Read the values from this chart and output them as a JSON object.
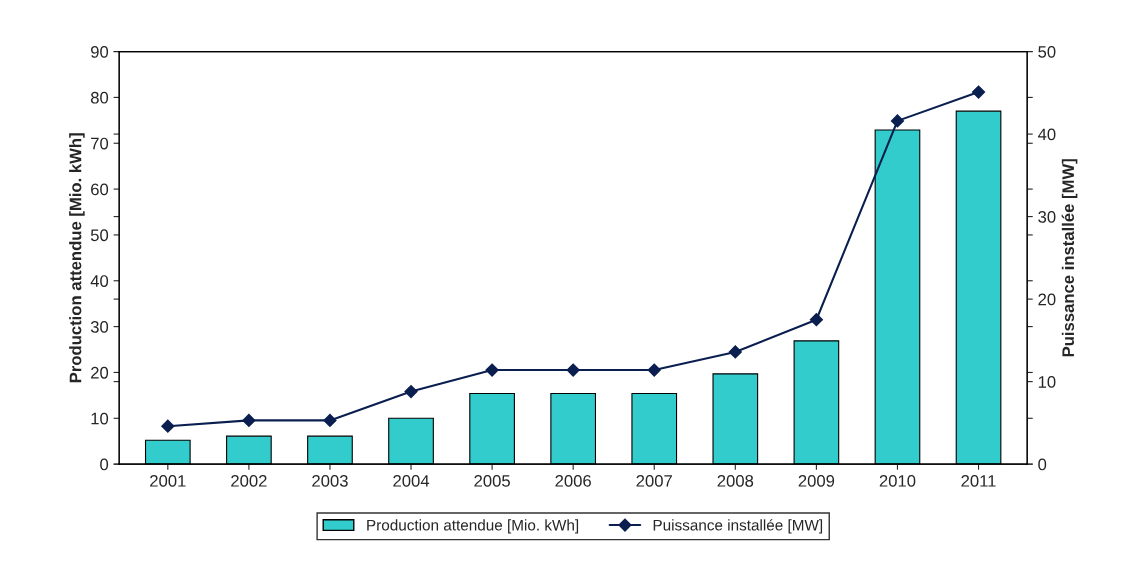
{
  "chart_data": {
    "type": "bar",
    "categories": [
      "2001",
      "2002",
      "2003",
      "2004",
      "2005",
      "2006",
      "2007",
      "2008",
      "2009",
      "2010",
      "2011"
    ],
    "ylabel": "Production attendue [Mio. kWh]",
    "y2label": "Puissance installée [MW]",
    "ylim": [
      0,
      90
    ],
    "yticks": [
      0,
      10,
      20,
      30,
      40,
      50,
      60,
      70,
      80,
      90
    ],
    "y2lim": [
      0,
      50
    ],
    "y2ticks": [
      0,
      10,
      20,
      30,
      40,
      50
    ],
    "series": [
      {
        "name": "Production attendue [Mio. kWh]",
        "color": "#33cccc",
        "values": [
          5.2,
          6.1,
          6.1,
          10,
          15.4,
          15.4,
          15.4,
          19.7,
          26.9,
          72.9,
          77
        ]
      },
      {
        "name": "Puissance installée [MW]",
        "type": "line",
        "axis": "y2",
        "color": "#0a1e50",
        "marker": "diamond",
        "values": [
          4.6,
          5.3,
          5.3,
          8.8,
          11.4,
          11.4,
          11.4,
          13.6,
          17.5,
          41.6,
          45.1
        ]
      }
    ],
    "grid": false,
    "legend": "bottom"
  }
}
